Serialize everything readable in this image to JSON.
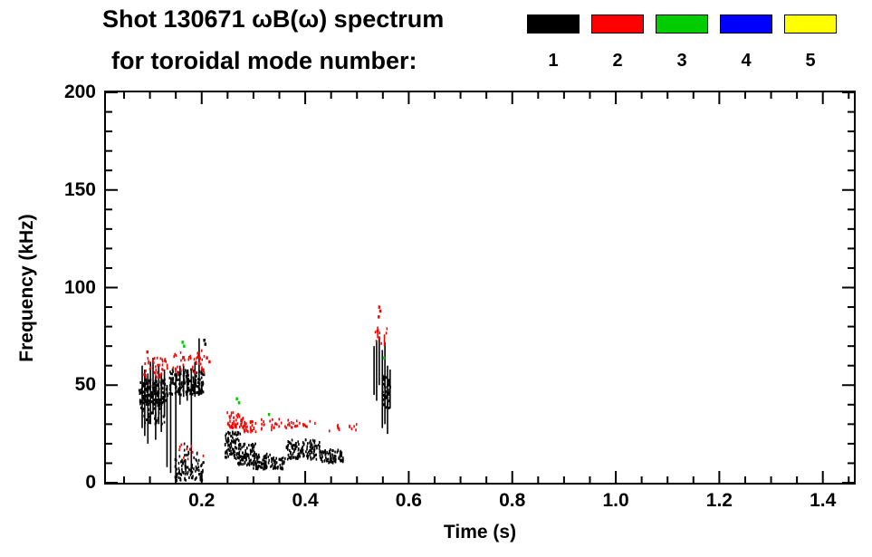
{
  "title": {
    "line1": "Shot 130671 ωB(ω) spectrum",
    "line2": "for toroidal mode number:"
  },
  "legend": {
    "modes": [
      {
        "label": "1",
        "color": "#000000"
      },
      {
        "label": "2",
        "color": "#ff0000"
      },
      {
        "label": "3",
        "color": "#00cc00"
      },
      {
        "label": "4",
        "color": "#0000ff"
      },
      {
        "label": "5",
        "color": "#ffff00"
      }
    ]
  },
  "chart_data": {
    "type": "scatter",
    "title": "Shot 130671 ωB(ω) spectrum for toroidal mode number 1-5",
    "xlabel": "Time (s)",
    "ylabel": "Frequency (kHz)",
    "xlim": [
      0.015,
      1.46
    ],
    "ylim": [
      0,
      200
    ],
    "xticks": [
      0.2,
      0.4,
      0.6,
      0.8,
      1.0,
      1.2,
      1.4
    ],
    "xtick_labels": [
      "0.2",
      "0.4",
      "0.6",
      "0.8",
      "1.0",
      "1.2",
      "1.4"
    ],
    "yticks": [
      0,
      50,
      100,
      150,
      200
    ],
    "ytick_labels": [
      "0",
      "50",
      "100",
      "150",
      "200"
    ],
    "x_minor": 0.05,
    "y_minor": 10,
    "grid": false,
    "legend_position": "top-right",
    "series": [
      {
        "name": "1",
        "mode": 1,
        "color": "#000000",
        "clusters": [
          {
            "t": [
              0.078,
              0.135
            ],
            "f": [
              40,
              53
            ],
            "n": 170
          },
          {
            "t": [
              0.082,
              0.13
            ],
            "f": [
              30,
              42
            ],
            "n": 45
          },
          {
            "t": [
              0.138,
              0.205
            ],
            "f": [
              45,
              58
            ],
            "n": 190
          },
          {
            "t": [
              0.148,
              0.205
            ],
            "f": [
              1,
              12
            ],
            "n": 95
          },
          {
            "t": [
              0.155,
              0.195
            ],
            "f": [
              12,
              20
            ],
            "n": 12
          },
          {
            "t": [
              0.245,
              0.275
            ],
            "f": [
              12,
              26
            ],
            "n": 95
          },
          {
            "t": [
              0.27,
              0.305
            ],
            "f": [
              9,
              20
            ],
            "n": 95
          },
          {
            "t": [
              0.3,
              0.335
            ],
            "f": [
              7,
              15
            ],
            "n": 70
          },
          {
            "t": [
              0.335,
              0.36
            ],
            "f": [
              7,
              13
            ],
            "n": 40
          },
          {
            "t": [
              0.36,
              0.43
            ],
            "f": [
              12,
              22
            ],
            "n": 140
          },
          {
            "t": [
              0.43,
              0.475
            ],
            "f": [
              10,
              17
            ],
            "n": 75
          },
          {
            "t": [
              0.548,
              0.565
            ],
            "f": [
              38,
              55
            ],
            "n": 55
          }
        ],
        "streaks": [
          {
            "t": 0.085,
            "f": [
              28,
              60
            ]
          },
          {
            "t": 0.09,
            "f": [
              24,
              58
            ]
          },
          {
            "t": 0.096,
            "f": [
              20,
              56
            ]
          },
          {
            "t": 0.101,
            "f": [
              30,
              62
            ]
          },
          {
            "t": 0.106,
            "f": [
              35,
              64
            ]
          },
          {
            "t": 0.111,
            "f": [
              22,
              55
            ]
          },
          {
            "t": 0.117,
            "f": [
              30,
              60
            ]
          },
          {
            "t": 0.122,
            "f": [
              26,
              56
            ]
          },
          {
            "t": 0.128,
            "f": [
              34,
              58
            ]
          },
          {
            "t": 0.133,
            "f": [
              8,
              50
            ]
          },
          {
            "t": 0.14,
            "f": [
              5,
              52
            ]
          },
          {
            "t": 0.15,
            "f": [
              2,
              56
            ]
          },
          {
            "t": 0.158,
            "f": [
              40,
              60
            ]
          },
          {
            "t": 0.165,
            "f": [
              44,
              60
            ]
          },
          {
            "t": 0.172,
            "f": [
              42,
              58
            ]
          },
          {
            "t": 0.18,
            "f": [
              4,
              58
            ]
          },
          {
            "t": 0.187,
            "f": [
              44,
              62
            ]
          },
          {
            "t": 0.195,
            "f": [
              45,
              74
            ]
          },
          {
            "t": 0.533,
            "f": [
              45,
              70
            ]
          },
          {
            "t": 0.538,
            "f": [
              42,
              73
            ]
          },
          {
            "t": 0.543,
            "f": [
              50,
              75
            ]
          },
          {
            "t": 0.549,
            "f": [
              28,
              68
            ]
          },
          {
            "t": 0.554,
            "f": [
              30,
              72
            ]
          },
          {
            "t": 0.559,
            "f": [
              25,
              60
            ]
          },
          {
            "t": 0.564,
            "f": [
              38,
              58
            ]
          }
        ],
        "points": [
          [
            0.205,
            73
          ],
          [
            0.207,
            71
          ]
        ]
      },
      {
        "name": "2",
        "mode": 2,
        "color": "#ff0000",
        "clusters": [
          {
            "t": [
              0.088,
              0.135
            ],
            "f": [
              54,
              64
            ],
            "n": 38
          },
          {
            "t": [
              0.143,
              0.205
            ],
            "f": [
              56,
              68
            ],
            "n": 48
          },
          {
            "t": [
              0.248,
              0.28
            ],
            "f": [
              28,
              36
            ],
            "n": 48
          },
          {
            "t": [
              0.28,
              0.31
            ],
            "f": [
              26,
              32
            ],
            "n": 30
          },
          {
            "t": [
              0.31,
              0.37
            ],
            "f": [
              27,
              33
            ],
            "n": 26
          },
          {
            "t": [
              0.37,
              0.42
            ],
            "f": [
              28,
              32
            ],
            "n": 16
          },
          {
            "t": [
              0.44,
              0.5
            ],
            "f": [
              26,
              30
            ],
            "n": 12
          },
          {
            "t": [
              0.148,
              0.21
            ],
            "f": [
              12,
              20
            ],
            "n": 10
          },
          {
            "t": [
              0.535,
              0.558
            ],
            "f": [
              70,
              80
            ],
            "n": 10
          }
        ],
        "streaks": [
          {
            "t": 0.54,
            "f": [
              74,
              80
            ]
          },
          {
            "t": 0.553,
            "f": [
              70,
              76
            ]
          }
        ],
        "points": [
          [
            0.543,
            90
          ],
          [
            0.545,
            88
          ],
          [
            0.542,
            85
          ],
          [
            0.21,
            64
          ],
          [
            0.215,
            62
          ],
          [
            0.095,
            67
          ]
        ]
      },
      {
        "name": "3",
        "mode": 3,
        "color": "#00cc00",
        "clusters": [],
        "streaks": [],
        "points": [
          [
            0.163,
            72
          ],
          [
            0.166,
            70
          ],
          [
            0.268,
            43
          ],
          [
            0.272,
            41
          ],
          [
            0.33,
            35
          ],
          [
            0.552,
            64
          ]
        ]
      },
      {
        "name": "4",
        "mode": 4,
        "color": "#0000ff",
        "clusters": [],
        "streaks": [],
        "points": []
      },
      {
        "name": "5",
        "mode": 5,
        "color": "#ffff00",
        "clusters": [],
        "streaks": [],
        "points": []
      }
    ]
  }
}
